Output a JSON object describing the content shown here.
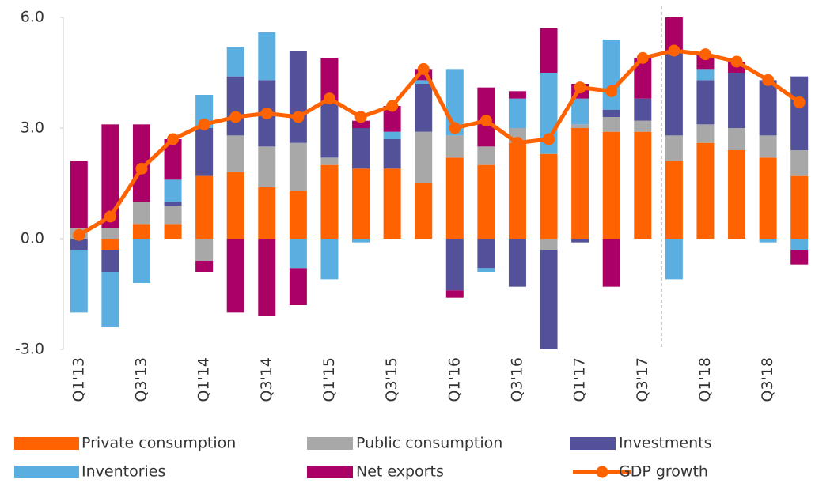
{
  "chart_data": {
    "type": "bar",
    "categories": [
      "Q1'13",
      null,
      "Q3'13",
      null,
      "Q1'14",
      null,
      "Q3'14",
      null,
      "Q1'15",
      null,
      "Q3'15",
      null,
      "Q1'16",
      null,
      "Q3'16",
      null,
      "Q1'17",
      null,
      "Q3'17",
      null,
      "Q1'18",
      null,
      "Q3'18",
      null
    ],
    "series": [
      {
        "name": "Private consumption",
        "color": "#ff6200",
        "values": [
          0,
          -0.3,
          0.4,
          0.4,
          1.7,
          1.8,
          1.4,
          1.3,
          2.0,
          1.9,
          1.9,
          1.5,
          2.2,
          2.0,
          2.6,
          2.3,
          3.0,
          2.9,
          2.9,
          2.1,
          2.6,
          2.4,
          2.2,
          1.7
        ]
      },
      {
        "name": "Public consumption",
        "color": "#a8a8a8",
        "values": [
          0.3,
          0.3,
          0.6,
          0.5,
          -0.6,
          1.0,
          1.1,
          1.3,
          0.2,
          0,
          0,
          1.4,
          0.6,
          0.5,
          0.4,
          -0.3,
          0.1,
          0.4,
          0.3,
          0.7,
          0.5,
          0.6,
          0.6,
          0.7
        ]
      },
      {
        "name": "Investments",
        "color": "#525199",
        "values": [
          -0.3,
          -0.6,
          0,
          0.1,
          1.3,
          1.6,
          1.8,
          2.5,
          1.5,
          1.1,
          0.8,
          1.3,
          -1.4,
          -0.8,
          -1.3,
          -2.7,
          -0.1,
          0.2,
          0.6,
          2.3,
          1.2,
          1.5,
          1.5,
          2.0
        ]
      },
      {
        "name": "Inventories",
        "color": "#5aaee0",
        "values": [
          -1.7,
          -1.5,
          -1.2,
          0.6,
          0.9,
          0.8,
          1.3,
          -0.8,
          -1.1,
          -0.1,
          0.2,
          0.1,
          1.8,
          -0.1,
          0.8,
          2.2,
          0.7,
          1.9,
          0,
          -1.1,
          0.3,
          0,
          -0.1,
          -0.3
        ]
      },
      {
        "name": "Net exports",
        "color": "#ab0066",
        "values": [
          1.8,
          2.8,
          2.1,
          1.1,
          -0.3,
          -2.0,
          -2.1,
          -1.0,
          1.2,
          0.2,
          0.7,
          0.3,
          -0.2,
          1.6,
          0.2,
          1.2,
          0.4,
          -1.3,
          1.1,
          0.9,
          0.4,
          0.3,
          0,
          -0.4
        ]
      },
      {
        "name": "GDP growth",
        "color": "#ff6200",
        "type": "line",
        "values": [
          0.1,
          0.6,
          1.9,
          2.7,
          3.1,
          3.3,
          3.4,
          3.3,
          3.8,
          3.3,
          3.6,
          4.6,
          3.0,
          3.2,
          2.6,
          2.7,
          4.1,
          4.0,
          4.9,
          5.1,
          5.0,
          4.8,
          4.3,
          3.7
        ]
      }
    ],
    "ylim": [
      -3,
      6
    ],
    "yticks": [
      {
        "value": -3,
        "label": "-3.0"
      },
      {
        "value": 0,
        "label": "0.0"
      },
      {
        "value": 3,
        "label": "3.0"
      },
      {
        "value": 6,
        "label": "6.0"
      }
    ],
    "grid": false
  }
}
